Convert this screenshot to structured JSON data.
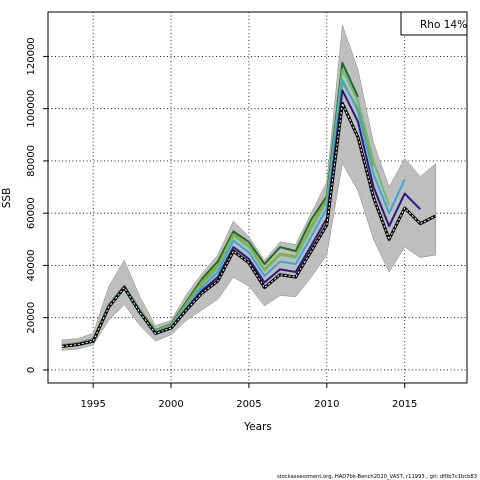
{
  "chart_data": {
    "type": "line",
    "xlabel": "Years",
    "ylabel": "SSB",
    "xlim": [
      1992.1,
      2019.0
    ],
    "ylim": [
      -5000,
      137000
    ],
    "x_ticks": [
      1995,
      2000,
      2005,
      2010,
      2015
    ],
    "y_ticks": [
      0,
      20000,
      40000,
      60000,
      80000,
      100000,
      120000
    ],
    "grid": true,
    "legend_position": "top-right",
    "legend_text": "Rho 14%",
    "footer": "stockassessment.org, HAD7bk-Bench2020_VAST, r11993 , git: df0b7c1bcb83",
    "colors": {
      "band": "#bebebe",
      "band_edge": "#888888",
      "base": "#000000",
      "base_dash": "#ffffff"
    },
    "band": {
      "x": [
        1993,
        1994,
        1995,
        1996,
        1997,
        1998,
        1999,
        2000,
        2001,
        2002,
        2003,
        2004,
        2005,
        2006,
        2007,
        2008,
        2009,
        2010,
        2011,
        2012,
        2013,
        2014,
        2015,
        2016,
        2017
      ],
      "lower": [
        7500,
        8000,
        9500,
        19000,
        25000,
        17000,
        11000,
        13500,
        19000,
        23000,
        27000,
        35500,
        32000,
        24500,
        28500,
        28000,
        35500,
        44000,
        79000,
        68500,
        50000,
        37500,
        47000,
        43000,
        44000
      ],
      "upper": [
        11500,
        12000,
        14000,
        32000,
        42000,
        28000,
        17000,
        19000,
        29000,
        37000,
        44000,
        57000,
        51000,
        42000,
        49000,
        48000,
        60000,
        72000,
        132000,
        115000,
        87000,
        70000,
        81000,
        74000,
        79000
      ]
    },
    "series": [
      {
        "color": "#000000",
        "x": [
          1993,
          1994,
          1995,
          1996,
          1997,
          1998,
          1999,
          2000,
          2001,
          2002,
          2003,
          2004,
          2005,
          2006,
          2007,
          2008,
          2009,
          2010,
          2011,
          2012,
          2013,
          2014,
          2015,
          2016,
          2017
        ],
        "values": [
          9000,
          9700,
          11000,
          24000,
          31500,
          22000,
          14000,
          16000,
          23000,
          29500,
          34000,
          45500,
          41000,
          31500,
          36500,
          35500,
          45500,
          55500,
          102000,
          89000,
          66000,
          50000,
          62000,
          56000,
          59000
        ]
      },
      {
        "color": "#2a1a7c",
        "x": [
          1993,
          1994,
          1995,
          1996,
          1997,
          1998,
          1999,
          2000,
          2001,
          2002,
          2003,
          2004,
          2005,
          2006,
          2007,
          2008,
          2009,
          2010,
          2011,
          2012,
          2013,
          2014,
          2015,
          2016
        ],
        "values": [
          9100,
          9800,
          11200,
          24200,
          31700,
          22200,
          14200,
          16200,
          23500,
          30500,
          35500,
          47000,
          42500,
          33500,
          38500,
          37500,
          47500,
          58000,
          107000,
          95000,
          70000,
          55000,
          67500,
          61500
        ]
      },
      {
        "color": "#3aa6d6",
        "x": [
          1993,
          1994,
          1995,
          1996,
          1997,
          1998,
          1999,
          2000,
          2001,
          2002,
          2003,
          2004,
          2005,
          2006,
          2007,
          2008,
          2009,
          2010,
          2011,
          2012,
          2013,
          2014,
          2015
        ],
        "values": [
          9200,
          9900,
          11400,
          24500,
          31900,
          22500,
          14500,
          16600,
          24200,
          31800,
          37500,
          49500,
          45000,
          36000,
          41500,
          40500,
          51000,
          62000,
          111000,
          99000,
          75000,
          60000,
          73000
        ]
      },
      {
        "color": "#6eb877",
        "x": [
          1993,
          1994,
          1995,
          1996,
          1997,
          1998,
          1999,
          2000,
          2001,
          2002,
          2003,
          2004,
          2005,
          2006,
          2007,
          2008,
          2009,
          2010,
          2011,
          2012,
          2013,
          2014
        ],
        "values": [
          9300,
          10000,
          11500,
          24600,
          32000,
          22700,
          14800,
          17000,
          25000,
          33000,
          39000,
          51500,
          47000,
          38000,
          44000,
          43000,
          54000,
          64500,
          115000,
          103000,
          80000,
          63000
        ]
      },
      {
        "color": "#9aa31f",
        "x": [
          1993,
          1994,
          1995,
          1996,
          1997,
          1998,
          1999,
          2000,
          2001,
          2002,
          2003,
          2004,
          2005,
          2006,
          2007,
          2008,
          2009,
          2010,
          2011,
          2012,
          2013
        ],
        "values": [
          9400,
          10100,
          11600,
          24800,
          32100,
          22900,
          15000,
          17300,
          25600,
          34000,
          40000,
          52000,
          47500,
          38500,
          44500,
          43500,
          55000,
          65500,
          110000,
          100000,
          78000
        ]
      },
      {
        "color": "#1a6b25",
        "x": [
          1993,
          1994,
          1995,
          1996,
          1997,
          1998,
          1999,
          2000,
          2001,
          2002,
          2003,
          2004,
          2005,
          2006,
          2007,
          2008,
          2009,
          2010,
          2011,
          2012
        ],
        "values": [
          9500,
          10200,
          11800,
          24900,
          32200,
          23000,
          15200,
          17600,
          26200,
          35000,
          41500,
          53000,
          49000,
          40500,
          47000,
          45500,
          57500,
          66500,
          117500,
          104500
        ]
      }
    ]
  }
}
